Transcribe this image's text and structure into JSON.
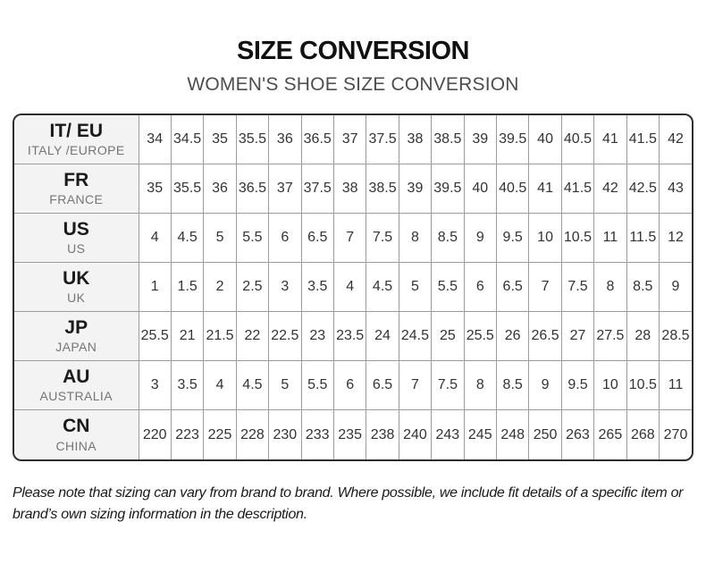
{
  "header": {
    "title": "SIZE CONVERSION",
    "subtitle": "WOMEN'S SHOE SIZE CONVERSION"
  },
  "table": {
    "rows": [
      {
        "code": "IT/ EU",
        "region": "ITALY /EUROPE",
        "values": [
          "34",
          "34.5",
          "35",
          "35.5",
          "36",
          "36.5",
          "37",
          "37.5",
          "38",
          "38.5",
          "39",
          "39.5",
          "40",
          "40.5",
          "41",
          "41.5",
          "42"
        ]
      },
      {
        "code": "FR",
        "region": "FRANCE",
        "values": [
          "35",
          "35.5",
          "36",
          "36.5",
          "37",
          "37.5",
          "38",
          "38.5",
          "39",
          "39.5",
          "40",
          "40.5",
          "41",
          "41.5",
          "42",
          "42.5",
          "43"
        ]
      },
      {
        "code": "US",
        "region": "US",
        "values": [
          "4",
          "4.5",
          "5",
          "5.5",
          "6",
          "6.5",
          "7",
          "7.5",
          "8",
          "8.5",
          "9",
          "9.5",
          "10",
          "10.5",
          "11",
          "11.5",
          "12"
        ]
      },
      {
        "code": "UK",
        "region": "UK",
        "values": [
          "1",
          "1.5",
          "2",
          "2.5",
          "3",
          "3.5",
          "4",
          "4.5",
          "5",
          "5.5",
          "6",
          "6.5",
          "7",
          "7.5",
          "8",
          "8.5",
          "9"
        ]
      },
      {
        "code": "JP",
        "region": "JAPAN",
        "values": [
          "25.5",
          "21",
          "21.5",
          "22",
          "22.5",
          "23",
          "23.5",
          "24",
          "24.5",
          "25",
          "25.5",
          "26",
          "26.5",
          "27",
          "27.5",
          "28",
          "28.5"
        ]
      },
      {
        "code": "AU",
        "region": "AUSTRALIA",
        "values": [
          "3",
          "3.5",
          "4",
          "4.5",
          "5",
          "5.5",
          "6",
          "6.5",
          "7",
          "7.5",
          "8",
          "8.5",
          "9",
          "9.5",
          "10",
          "10.5",
          "11"
        ]
      },
      {
        "code": "CN",
        "region": "CHINA",
        "values": [
          "220",
          "223",
          "225",
          "228",
          "230",
          "233",
          "235",
          "238",
          "240",
          "243",
          "245",
          "248",
          "250",
          "263",
          "265",
          "268",
          "270"
        ]
      }
    ]
  },
  "footer": {
    "note": "Please note that sizing can vary from brand to brand. Where possible, we include fit details of a specific item or brand’s own sizing information in the description."
  },
  "colors": {
    "outer_border": "#2e2e2e",
    "grid_line": "#9c9c9c",
    "header_cell_bg": "#f3f3f3",
    "title_text": "#111111",
    "subtitle_text": "#4d4d4d",
    "cell_text": "#333333",
    "region_name_text": "#757575"
  },
  "chart_data": {
    "type": "table",
    "title": "SIZE CONVERSION",
    "subtitle": "WOMEN'S SHOE SIZE CONVERSION",
    "row_headers": [
      "IT/ EU (ITALY /EUROPE)",
      "FR (FRANCE)",
      "US (US)",
      "UK (UK)",
      "JP (JAPAN)",
      "AU (AUSTRALIA)",
      "CN (CHINA)"
    ],
    "series": [
      {
        "name": "IT/EU",
        "values": [
          34,
          34.5,
          35,
          35.5,
          36,
          36.5,
          37,
          37.5,
          38,
          38.5,
          39,
          39.5,
          40,
          40.5,
          41,
          41.5,
          42
        ]
      },
      {
        "name": "FR",
        "values": [
          35,
          35.5,
          36,
          36.5,
          37,
          37.5,
          38,
          38.5,
          39,
          39.5,
          40,
          40.5,
          41,
          41.5,
          42,
          42.5,
          43
        ]
      },
      {
        "name": "US",
        "values": [
          4,
          4.5,
          5,
          5.5,
          6,
          6.5,
          7,
          7.5,
          8,
          8.5,
          9,
          9.5,
          10,
          10.5,
          11,
          11.5,
          12
        ]
      },
      {
        "name": "UK",
        "values": [
          1,
          1.5,
          2,
          2.5,
          3,
          3.5,
          4,
          4.5,
          5,
          5.5,
          6,
          6.5,
          7,
          7.5,
          8,
          8.5,
          9
        ]
      },
      {
        "name": "JP",
        "values": [
          25.5,
          21,
          21.5,
          22,
          22.5,
          23,
          23.5,
          24,
          24.5,
          25,
          25.5,
          26,
          26.5,
          27,
          27.5,
          28,
          28.5
        ]
      },
      {
        "name": "AU",
        "values": [
          3,
          3.5,
          4,
          4.5,
          5,
          5.5,
          6,
          6.5,
          7,
          7.5,
          8,
          8.5,
          9,
          9.5,
          10,
          10.5,
          11
        ]
      },
      {
        "name": "CN",
        "values": [
          220,
          223,
          225,
          228,
          230,
          233,
          235,
          238,
          240,
          243,
          245,
          248,
          250,
          263,
          265,
          268,
          270
        ]
      }
    ]
  }
}
